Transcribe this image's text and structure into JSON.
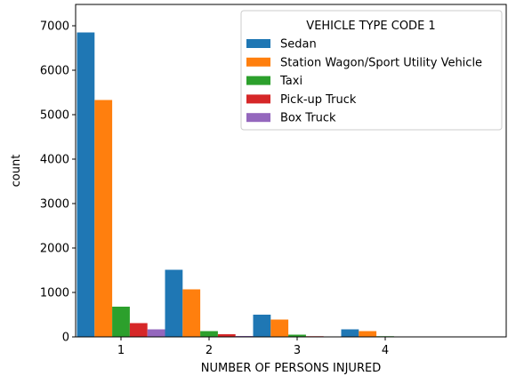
{
  "chart_data": {
    "type": "bar",
    "categories": [
      "1",
      "2",
      "3",
      "4"
    ],
    "xlabel": "NUMBER OF PERSONS INJURED",
    "ylabel": "count",
    "ylim": [
      0,
      7000
    ],
    "yticks": [
      0,
      1000,
      2000,
      3000,
      4000,
      5000,
      6000,
      7000
    ],
    "grid": false,
    "legend": {
      "title": "VEHICLE TYPE CODE 1",
      "placement": "top-right"
    },
    "series": [
      {
        "name": "Sedan",
        "color": "#1f77b4",
        "values": [
          6850,
          1510,
          500,
          170
        ]
      },
      {
        "name": "Station Wagon/Sport Utility Vehicle",
        "color": "#ff7f0e",
        "values": [
          5330,
          1070,
          390,
          130
        ]
      },
      {
        "name": "Taxi",
        "color": "#2ca02c",
        "values": [
          680,
          130,
          50,
          15
        ]
      },
      {
        "name": "Pick-up Truck",
        "color": "#d62728",
        "values": [
          310,
          60,
          15,
          5
        ]
      },
      {
        "name": "Box Truck",
        "color": "#9467bd",
        "values": [
          170,
          20,
          10,
          0
        ]
      }
    ]
  }
}
